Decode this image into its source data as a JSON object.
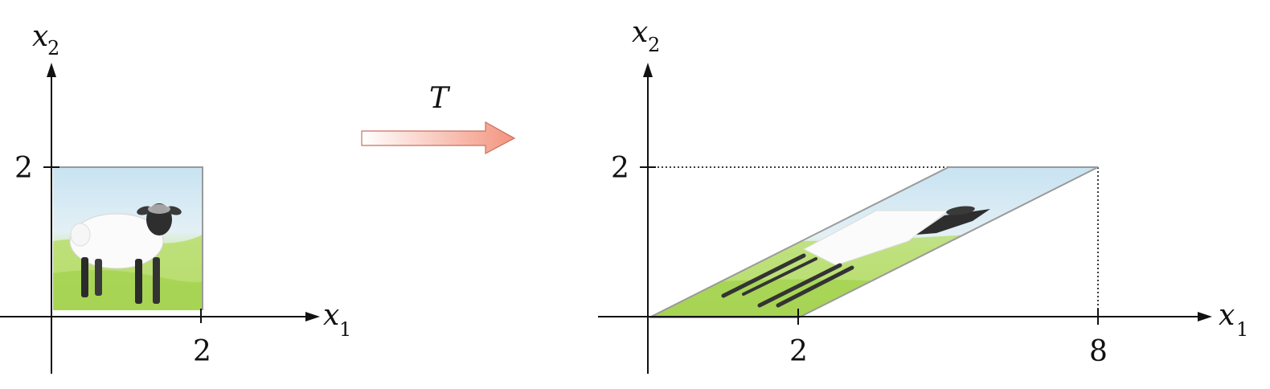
{
  "left_panel": {
    "x_axis": {
      "name": "x",
      "sub": "1"
    },
    "y_axis": {
      "name": "x",
      "sub": "2"
    },
    "x_tick": "2",
    "y_tick": "2"
  },
  "transform": {
    "label": "T"
  },
  "right_panel": {
    "x_axis": {
      "name": "x",
      "sub": "1"
    },
    "y_axis": {
      "name": "x",
      "sub": "2"
    },
    "x_ticks": [
      "2",
      "8"
    ],
    "y_tick": "2"
  },
  "colors": {
    "sky": "#cfe7f3",
    "grass": "#b6dc6a",
    "arrow_end": "#f39a86",
    "frame": "#999999"
  },
  "icons": {
    "left_image": "sheep-picture",
    "right_image": "sheared-sheep-picture"
  }
}
